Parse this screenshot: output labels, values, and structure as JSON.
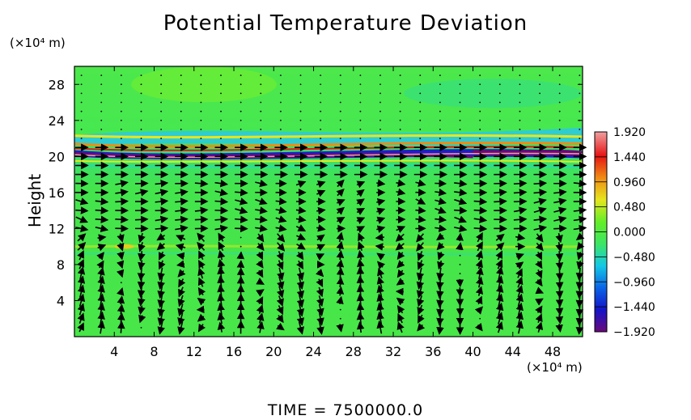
{
  "figure": {
    "title": "Potential Temperature Deviation",
    "y_unit": "(×10⁴ m)",
    "x_unit": "(×10⁴ m)",
    "y_label": "Height",
    "time_label": "TIME  =  7500000.0"
  },
  "chart_data": {
    "type": "heatmap",
    "title": "Potential Temperature Deviation",
    "xlabel": "",
    "ylabel": "Height",
    "x_unit": "(×10⁴ m)",
    "y_unit": "(×10⁴ m)",
    "xlim": [
      0,
      51
    ],
    "ylim": [
      0,
      30
    ],
    "x_ticks": [
      4,
      8,
      12,
      16,
      20,
      24,
      28,
      32,
      36,
      40,
      44,
      48
    ],
    "y_ticks": [
      4,
      8,
      12,
      16,
      20,
      24,
      28
    ],
    "colorbar": {
      "range": [
        -1.92,
        1.92
      ],
      "ticks": [
        1.92,
        1.44,
        0.96,
        0.48,
        0.0,
        -0.48,
        -0.96,
        -1.44,
        -1.92
      ],
      "tick_labels": [
        "1.920",
        "1.440",
        "0.960",
        "0.480",
        "0.000",
        "−0.480",
        "−0.960",
        "−1.440",
        "−1.920"
      ],
      "colors": [
        "#6a0a7a",
        "#1414c8",
        "#0a64e6",
        "#14c8e6",
        "#3ce664",
        "#64ee28",
        "#e6e61e",
        "#f08c14",
        "#e61414",
        "#f0a0a0"
      ]
    },
    "features": {
      "background_value": 0.0,
      "tropopause_band_height": [
        19.5,
        22.5
      ],
      "secondary_band_height": 10.0,
      "vector_overlay": "wind vectors (arrows) on regular grid"
    },
    "time": "7500000.0"
  }
}
